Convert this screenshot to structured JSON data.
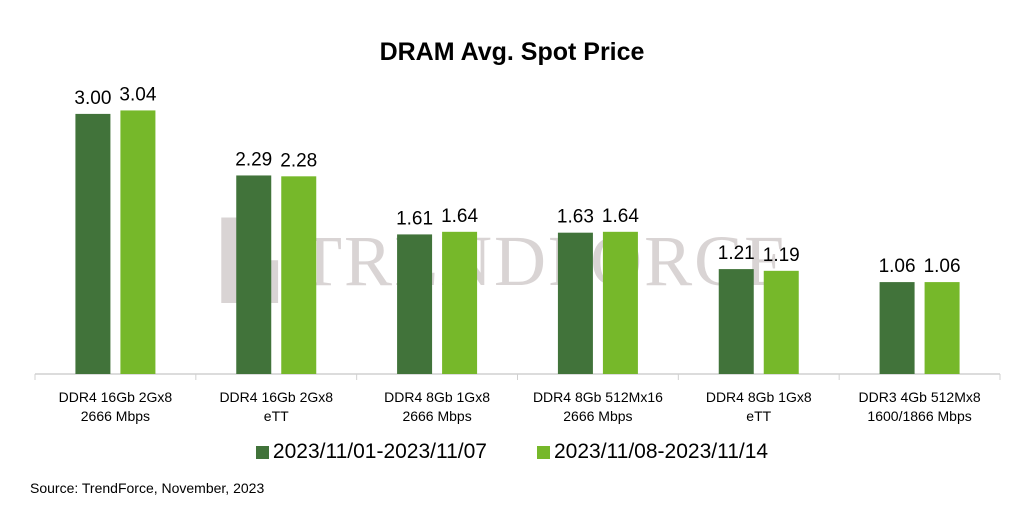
{
  "chart_data": {
    "type": "bar",
    "title": "DRAM Avg. Spot Price",
    "categories": [
      [
        "DDR4 16Gb 2Gx8",
        "2666 Mbps"
      ],
      [
        "DDR4 16Gb 2Gx8",
        "eTT"
      ],
      [
        "DDR4 8Gb 1Gx8",
        "2666 Mbps"
      ],
      [
        "DDR4 8Gb 512Mx16",
        "2666 Mbps"
      ],
      [
        "DDR4 8Gb 1Gx8",
        "eTT"
      ],
      [
        "DDR3 4Gb 512Mx8",
        "1600/1866 Mbps"
      ]
    ],
    "series": [
      {
        "name": "2023/11/01-2023/11/07",
        "color": "#41733a",
        "values": [
          3.0,
          2.29,
          1.61,
          1.63,
          1.21,
          1.06
        ],
        "labels": [
          "3.00",
          "2.29",
          "1.61",
          "1.63",
          "1.21",
          "1.06"
        ]
      },
      {
        "name": "2023/11/08-2023/11/14",
        "color": "#76b82a",
        "values": [
          3.04,
          2.28,
          1.64,
          1.64,
          1.19,
          1.06
        ],
        "labels": [
          "3.04",
          "2.28",
          "1.64",
          "1.64",
          "1.19",
          "1.06"
        ]
      }
    ],
    "ylim": [
      0,
      3.5
    ],
    "grid": false,
    "legend": "bottom",
    "source": "Source: TrendForce, November, 2023",
    "watermark": "TRENDFORCE"
  }
}
